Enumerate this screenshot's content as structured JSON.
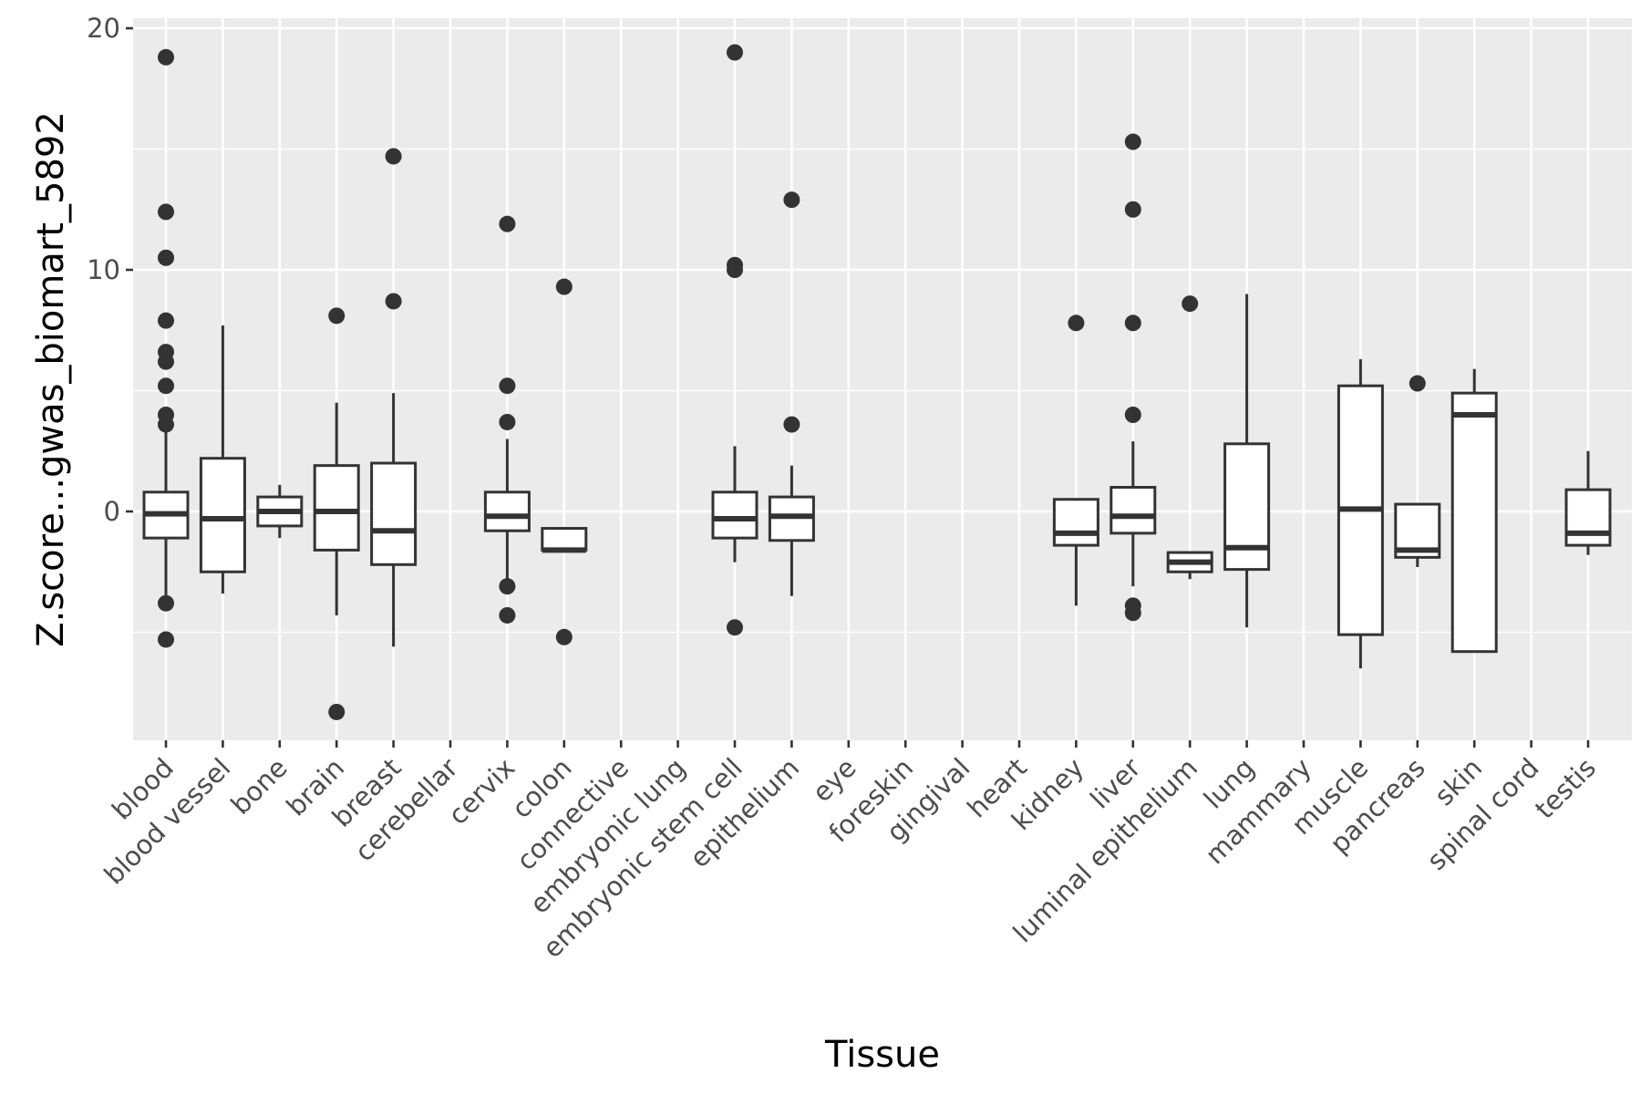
{
  "chart_data": {
    "type": "box",
    "xlabel": "Tissue",
    "ylabel": "Z.score...gwas_biomart_5892",
    "ylim": [
      -9.5,
      20.5
    ],
    "yticks": [
      0,
      10,
      20
    ],
    "grid": true,
    "categories": [
      "blood",
      "blood vessel",
      "bone",
      "brain",
      "breast",
      "cerebellar",
      "cervix",
      "colon",
      "connective",
      "embryonic lung",
      "embryonic stem cell",
      "epithelium",
      "eye",
      "foreskin",
      "gingival",
      "heart",
      "kidney",
      "liver",
      "luminal epithelium",
      "lung",
      "mammary",
      "muscle",
      "pancreas",
      "skin",
      "spinal cord",
      "testis"
    ],
    "boxes": [
      {
        "category": "blood",
        "q1": -1.1,
        "median": -0.1,
        "q3": 0.8,
        "whisker_low": -3.6,
        "whisker_high": 3.3,
        "outliers": [
          18.8,
          12.4,
          10.5,
          7.9,
          6.6,
          6.2,
          5.2,
          4.0,
          3.6,
          -3.8,
          -5.3
        ]
      },
      {
        "category": "blood vessel",
        "q1": -2.5,
        "median": -0.3,
        "q3": 2.2,
        "whisker_low": -3.4,
        "whisker_high": 7.7,
        "outliers": []
      },
      {
        "category": "bone",
        "q1": -0.6,
        "median": 0.0,
        "q3": 0.6,
        "whisker_low": -1.1,
        "whisker_high": 1.1,
        "outliers": []
      },
      {
        "category": "brain",
        "q1": -1.6,
        "median": 0.0,
        "q3": 1.9,
        "whisker_low": -4.3,
        "whisker_high": 4.5,
        "outliers": [
          8.1,
          -8.3
        ]
      },
      {
        "category": "breast",
        "q1": -2.2,
        "median": -0.8,
        "q3": 2.0,
        "whisker_low": -5.6,
        "whisker_high": 4.9,
        "outliers": [
          14.7,
          8.7
        ]
      },
      {
        "category": "cervix",
        "q1": -0.8,
        "median": -0.2,
        "q3": 0.8,
        "whisker_low": -2.9,
        "whisker_high": 3.0,
        "outliers": [
          11.9,
          5.2,
          3.7,
          -3.1,
          -4.3
        ]
      },
      {
        "category": "colon",
        "q1": -1.6,
        "median": -1.6,
        "q3": -0.7,
        "whisker_low": -1.6,
        "whisker_high": -0.7,
        "outliers": [
          9.3,
          -5.2
        ]
      },
      {
        "category": "embryonic stem cell",
        "q1": -1.1,
        "median": -0.3,
        "q3": 0.8,
        "whisker_low": -2.1,
        "whisker_high": 2.7,
        "outliers": [
          19.0,
          10.2,
          10.0,
          -4.8
        ]
      },
      {
        "category": "epithelium",
        "q1": -1.2,
        "median": -0.2,
        "q3": 0.6,
        "whisker_low": -3.5,
        "whisker_high": 1.9,
        "outliers": [
          12.9,
          3.6
        ]
      },
      {
        "category": "kidney",
        "q1": -1.4,
        "median": -0.9,
        "q3": 0.5,
        "whisker_low": -3.9,
        "whisker_high": 0.5,
        "outliers": [
          7.8
        ]
      },
      {
        "category": "liver",
        "q1": -0.9,
        "median": -0.2,
        "q3": 1.0,
        "whisker_low": -3.1,
        "whisker_high": 2.9,
        "outliers": [
          15.3,
          12.5,
          7.8,
          4.0,
          -3.9,
          -4.2
        ]
      },
      {
        "category": "luminal epithelium",
        "q1": -2.5,
        "median": -2.1,
        "q3": -1.7,
        "whisker_low": -2.8,
        "whisker_high": -1.7,
        "outliers": [
          8.6
        ]
      },
      {
        "category": "lung",
        "q1": -2.4,
        "median": -1.5,
        "q3": 2.8,
        "whisker_low": -4.8,
        "whisker_high": 9.0,
        "outliers": []
      },
      {
        "category": "muscle",
        "q1": -5.1,
        "median": 0.1,
        "q3": 5.2,
        "whisker_low": -6.5,
        "whisker_high": 6.3,
        "outliers": []
      },
      {
        "category": "pancreas",
        "q1": -1.9,
        "median": -1.6,
        "q3": 0.3,
        "whisker_low": -2.3,
        "whisker_high": 0.3,
        "outliers": [
          5.3
        ]
      },
      {
        "category": "skin",
        "q1": -5.8,
        "median": 4.0,
        "q3": 4.9,
        "whisker_low": -5.8,
        "whisker_high": 5.9,
        "outliers": []
      },
      {
        "category": "testis",
        "q1": -1.4,
        "median": -0.9,
        "q3": 0.9,
        "whisker_low": -1.8,
        "whisker_high": 2.5,
        "outliers": []
      }
    ]
  }
}
